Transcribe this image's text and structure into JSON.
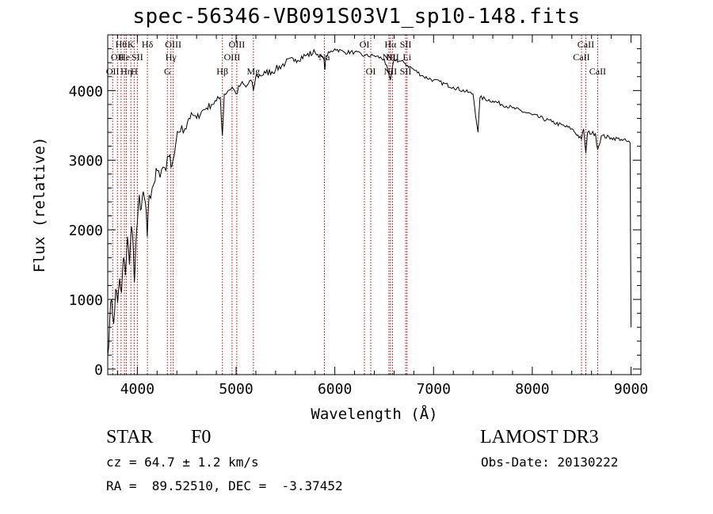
{
  "title": "spec-56346-VB091S03V1_sp10-148.fits",
  "chart_data": {
    "type": "line",
    "title": "spec-56346-VB091S03V1_sp10-148.fits",
    "xlabel": "Wavelength (Å)",
    "ylabel": "Flux (relative)",
    "xlim": [
      3700,
      9100
    ],
    "ylim": [
      -80,
      4800
    ],
    "xticks": [
      4000,
      5000,
      6000,
      7000,
      8000,
      9000
    ],
    "yticks": [
      0,
      1000,
      2000,
      3000,
      4000
    ],
    "series": [
      {
        "color": "#000000",
        "points": [
          [
            3700,
            200
          ],
          [
            3720,
            700
          ],
          [
            3740,
            1000
          ],
          [
            3760,
            650
          ],
          [
            3780,
            1150
          ],
          [
            3800,
            950
          ],
          [
            3820,
            1300
          ],
          [
            3840,
            1100
          ],
          [
            3860,
            1600
          ],
          [
            3880,
            1350
          ],
          [
            3900,
            1900
          ],
          [
            3920,
            1500
          ],
          [
            3940,
            2050
          ],
          [
            3960,
            1700
          ],
          [
            3970,
            1250
          ],
          [
            3985,
            1800
          ],
          [
            4000,
            2100
          ],
          [
            4020,
            2500
          ],
          [
            4040,
            2300
          ],
          [
            4060,
            2550
          ],
          [
            4080,
            2400
          ],
          [
            4100,
            1900
          ],
          [
            4120,
            2500
          ],
          [
            4150,
            2600
          ],
          [
            4180,
            2700
          ],
          [
            4200,
            2850
          ],
          [
            4230,
            2750
          ],
          [
            4260,
            2900
          ],
          [
            4290,
            2850
          ],
          [
            4320,
            3050
          ],
          [
            4340,
            2900
          ],
          [
            4360,
            3000
          ],
          [
            4390,
            3250
          ],
          [
            4420,
            3400
          ],
          [
            4450,
            3500
          ],
          [
            4480,
            3450
          ],
          [
            4520,
            3600
          ],
          [
            4560,
            3650
          ],
          [
            4600,
            3600
          ],
          [
            4650,
            3700
          ],
          [
            4700,
            3750
          ],
          [
            4750,
            3800
          ],
          [
            4800,
            3850
          ],
          [
            4840,
            3900
          ],
          [
            4861,
            3350
          ],
          [
            4880,
            3950
          ],
          [
            4920,
            4000
          ],
          [
            4960,
            4050
          ],
          [
            5000,
            3950
          ],
          [
            5050,
            4100
          ],
          [
            5100,
            4050
          ],
          [
            5150,
            4150
          ],
          [
            5175,
            4000
          ],
          [
            5200,
            4200
          ],
          [
            5300,
            4250
          ],
          [
            5400,
            4300
          ],
          [
            5500,
            4400
          ],
          [
            5600,
            4450
          ],
          [
            5700,
            4500
          ],
          [
            5800,
            4550
          ],
          [
            5890,
            4450
          ],
          [
            5900,
            4300
          ],
          [
            5910,
            4500
          ],
          [
            6000,
            4600
          ],
          [
            6100,
            4550
          ],
          [
            6200,
            4550
          ],
          [
            6300,
            4500
          ],
          [
            6400,
            4500
          ],
          [
            6500,
            4450
          ],
          [
            6563,
            4150
          ],
          [
            6600,
            4450
          ],
          [
            6700,
            4400
          ],
          [
            6800,
            4300
          ],
          [
            6900,
            4200
          ],
          [
            7000,
            4150
          ],
          [
            7200,
            4050
          ],
          [
            7400,
            3950
          ],
          [
            7450,
            3400
          ],
          [
            7470,
            3900
          ],
          [
            7600,
            3850
          ],
          [
            7800,
            3750
          ],
          [
            8000,
            3650
          ],
          [
            8200,
            3550
          ],
          [
            8400,
            3450
          ],
          [
            8498,
            3300
          ],
          [
            8520,
            3450
          ],
          [
            8542,
            3100
          ],
          [
            8560,
            3400
          ],
          [
            8640,
            3380
          ],
          [
            8662,
            3150
          ],
          [
            8700,
            3350
          ],
          [
            8800,
            3320
          ],
          [
            8900,
            3300
          ],
          [
            8990,
            3250
          ],
          [
            9000,
            600
          ]
        ]
      }
    ],
    "line_markers": [
      {
        "w": 3750,
        "labels": [
          {
            "text": "OII",
            "row": 3
          }
        ]
      },
      {
        "w": 3798,
        "labels": [
          {
            "text": "OII",
            "row": 2
          }
        ]
      },
      {
        "w": 3835,
        "labels": [
          {
            "text": "Hθ",
            "row": 1
          }
        ]
      },
      {
        "w": 3869,
        "labels": [
          {
            "text": "He",
            "row": 2
          }
        ]
      },
      {
        "w": 3889,
        "labels": [
          {
            "text": "Hη",
            "row": 3
          }
        ]
      },
      {
        "w": 3934,
        "labels": [
          {
            "text": "K",
            "row": 1
          }
        ]
      },
      {
        "w": 3968,
        "labels": [
          {
            "text": "H",
            "row": 3
          }
        ]
      },
      {
        "w": 4000,
        "labels": [
          {
            "text": "SII",
            "row": 2
          }
        ]
      },
      {
        "w": 4102,
        "labels": [
          {
            "text": "Hδ",
            "row": 1
          }
        ]
      },
      {
        "w": 4304,
        "labels": [
          {
            "text": "G",
            "row": 3
          }
        ]
      },
      {
        "w": 4340,
        "labels": [
          {
            "text": "Hγ",
            "row": 2
          }
        ]
      },
      {
        "w": 4363,
        "labels": [
          {
            "text": "OIII",
            "row": 1
          }
        ]
      },
      {
        "w": 4861,
        "labels": [
          {
            "text": "Hβ",
            "row": 3
          }
        ]
      },
      {
        "w": 4959,
        "labels": [
          {
            "text": "OIII",
            "row": 2
          }
        ]
      },
      {
        "w": 5007,
        "labels": [
          {
            "text": "OIII",
            "row": 1
          }
        ]
      },
      {
        "w": 5175,
        "labels": [
          {
            "text": "Mg",
            "row": 3
          }
        ]
      },
      {
        "w": 5894,
        "labels": [
          {
            "text": "Na",
            "row": 2
          }
        ]
      },
      {
        "w": 6300,
        "labels": [
          {
            "text": "OI",
            "row": 1
          }
        ]
      },
      {
        "w": 6364,
        "labels": [
          {
            "text": "OI",
            "row": 3
          }
        ]
      },
      {
        "w": 6548,
        "labels": [
          {
            "text": "NII",
            "row": 2
          }
        ]
      },
      {
        "w": 6563,
        "labels": [
          {
            "text": "Hα",
            "row": 1
          },
          {
            "text": "NII",
            "row": 3
          }
        ]
      },
      {
        "w": 6584,
        "labels": [
          {
            "text": "NII",
            "row": 2
          }
        ]
      },
      {
        "w": 6717,
        "labels": [
          {
            "text": "SII",
            "row": 1
          },
          {
            "text": "SII",
            "row": 3
          }
        ]
      },
      {
        "w": 6731,
        "labels": [
          {
            "text": "Li",
            "row": 2
          }
        ]
      },
      {
        "w": 8498,
        "labels": [
          {
            "text": "CaII",
            "row": 2
          }
        ]
      },
      {
        "w": 8542,
        "labels": [
          {
            "text": "CaII",
            "row": 1
          }
        ]
      },
      {
        "w": 8662,
        "labels": [
          {
            "text": "CaII",
            "row": 3
          }
        ]
      }
    ],
    "marker_color": "#b00000",
    "grid": false
  },
  "info": {
    "object_class": "STAR",
    "subclass": "F0",
    "redshift": "cz = 64.7 ± 1.2 km/s",
    "coords": "RA =  89.52510, DEC =  -3.37452",
    "survey": "LAMOST DR3",
    "obs_date": "Obs-Date: 20130222"
  }
}
